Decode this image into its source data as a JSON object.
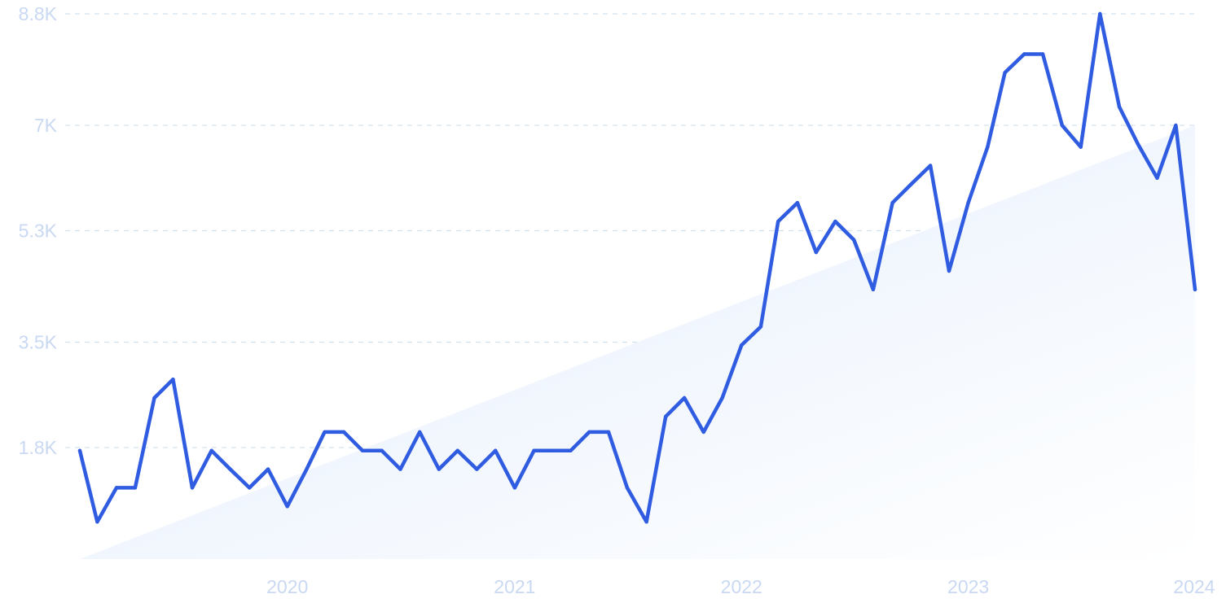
{
  "chart_data": {
    "type": "line",
    "title": "",
    "xlabel": "",
    "ylabel": "",
    "ylim": [
      0,
      8800
    ],
    "y_ticks": [
      {
        "value": 1800,
        "label": "1.8K"
      },
      {
        "value": 3500,
        "label": "3.5K"
      },
      {
        "value": 5300,
        "label": "5.3K"
      },
      {
        "value": 7000,
        "label": "7K"
      },
      {
        "value": 8800,
        "label": "8.8K"
      }
    ],
    "x_ticks": [
      {
        "value": "2020-01-01",
        "label": "2020"
      },
      {
        "value": "2021-01-01",
        "label": "2021"
      },
      {
        "value": "2022-01-01",
        "label": "2022"
      },
      {
        "value": "2023-01-01",
        "label": "2023"
      },
      {
        "value": "2024-01-01",
        "label": "2024"
      }
    ],
    "grid": {
      "horizontal": true,
      "style": "dashed"
    },
    "trend": {
      "start": {
        "x": "2019-02-01",
        "y": 0
      },
      "end": {
        "x": "2024-01-01",
        "y": 7000
      }
    },
    "colors": {
      "line": "#2f5ce0",
      "grid": "#cfe0ee",
      "tick_text": "#c9d8f3",
      "trend_fill_start": "#e3eefc",
      "trend_fill_end": "#ffffff"
    },
    "series": [
      {
        "x": [
          "2019-02-01",
          "2019-03-01",
          "2019-04-01",
          "2019-05-01",
          "2019-06-01",
          "2019-07-01",
          "2019-08-01",
          "2019-09-01",
          "2019-10-01",
          "2019-11-01",
          "2019-12-01",
          "2020-01-01",
          "2020-02-01",
          "2020-03-01",
          "2020-04-01",
          "2020-05-01",
          "2020-06-01",
          "2020-07-01",
          "2020-08-01",
          "2020-09-01",
          "2020-10-01",
          "2020-11-01",
          "2020-12-01",
          "2021-01-01",
          "2021-02-01",
          "2021-03-01",
          "2021-04-01",
          "2021-05-01",
          "2021-06-01",
          "2021-07-01",
          "2021-08-01",
          "2021-09-01",
          "2021-10-01",
          "2021-11-01",
          "2021-12-01",
          "2022-01-01",
          "2022-02-01",
          "2022-03-01",
          "2022-04-01",
          "2022-05-01",
          "2022-06-01",
          "2022-07-01",
          "2022-08-01",
          "2022-09-01",
          "2022-10-01",
          "2022-11-01",
          "2022-12-01",
          "2023-01-01",
          "2023-02-01",
          "2023-03-01",
          "2023-04-01",
          "2023-05-01",
          "2023-06-01",
          "2023-07-01",
          "2023-08-01",
          "2023-09-01",
          "2023-10-01",
          "2023-11-01",
          "2023-12-01",
          "2024-01-01"
        ],
        "values": [
          1750,
          600,
          1150,
          1150,
          2600,
          2900,
          1150,
          1750,
          1450,
          1150,
          1450,
          850,
          1450,
          2050,
          2050,
          1750,
          1750,
          1450,
          2050,
          1450,
          1750,
          1450,
          1750,
          1150,
          1750,
          1750,
          1750,
          2050,
          2050,
          1150,
          600,
          2300,
          2600,
          2050,
          2600,
          3450,
          3750,
          5450,
          5750,
          4950,
          5450,
          5150,
          4350,
          5750,
          6050,
          6350,
          4650,
          5750,
          6650,
          7850,
          8150,
          8150,
          7000,
          6650,
          8800,
          7300,
          6700,
          6150,
          7000,
          4350
        ]
      }
    ]
  }
}
